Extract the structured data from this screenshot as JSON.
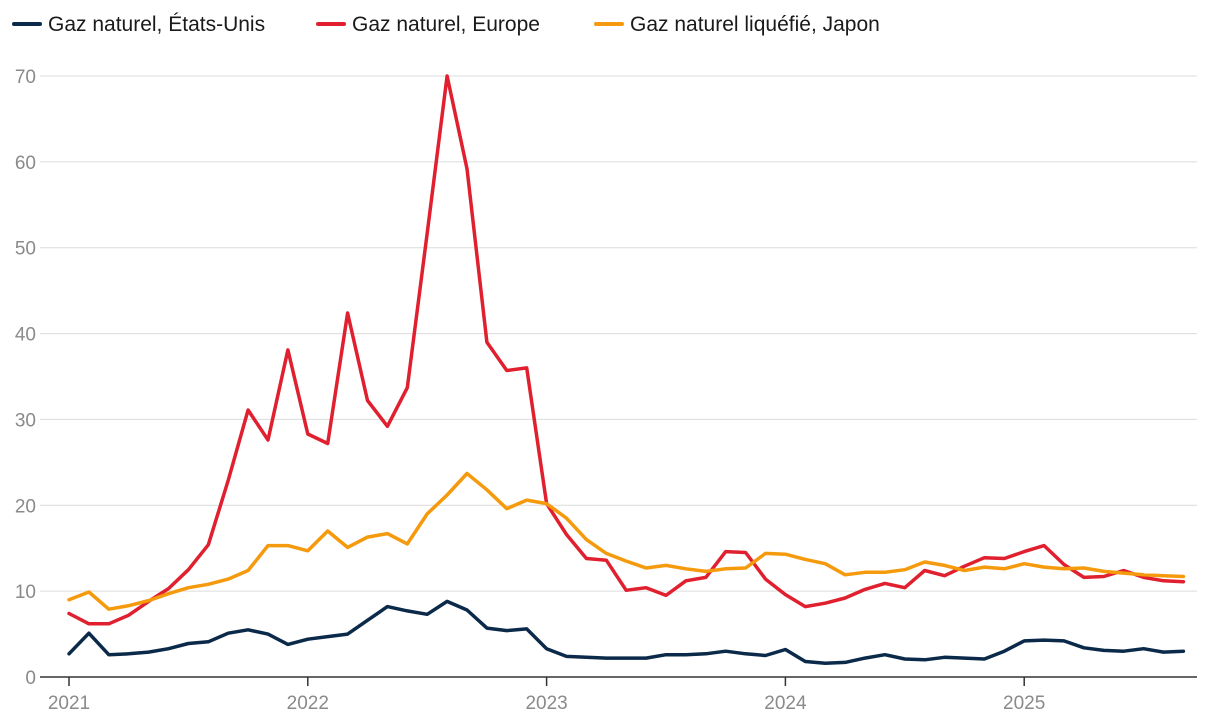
{
  "chart_data": {
    "type": "line",
    "title": "",
    "xlabel": "",
    "ylabel": "",
    "ylim": [
      0,
      70
    ],
    "yticks": [
      0,
      10,
      20,
      30,
      40,
      50,
      60,
      70
    ],
    "xtick_labels": [
      "2021",
      "2022",
      "2023",
      "2024",
      "2025"
    ],
    "grid": true,
    "legend_position": "top-left",
    "x_start": "2021-01",
    "series": [
      {
        "name": "Gaz naturel, États-Unis",
        "color": "#0b2a4a",
        "values": [
          2.7,
          5.1,
          2.6,
          2.7,
          2.9,
          3.3,
          3.9,
          4.1,
          5.1,
          5.5,
          5.0,
          3.8,
          4.4,
          4.7,
          5.0,
          6.6,
          8.2,
          7.7,
          7.3,
          8.8,
          7.8,
          5.7,
          5.4,
          5.6,
          3.3,
          2.4,
          2.3,
          2.2,
          2.2,
          2.2,
          2.6,
          2.6,
          2.7,
          3.0,
          2.7,
          2.5,
          3.2,
          1.8,
          1.6,
          1.7,
          2.2,
          2.6,
          2.1,
          2.0,
          2.3,
          2.2,
          2.1,
          3.0,
          4.2,
          4.3,
          4.2,
          3.4,
          3.1,
          3.0,
          3.3,
          2.9,
          3.0
        ]
      },
      {
        "name": "Gaz naturel, Europe",
        "color": "#e0202f",
        "values": [
          7.4,
          6.2,
          6.2,
          7.2,
          8.8,
          10.3,
          12.5,
          15.4,
          22.9,
          31.1,
          27.6,
          38.1,
          28.3,
          27.2,
          42.4,
          32.2,
          29.2,
          33.7,
          51.7,
          70.0,
          59.2,
          39.0,
          35.7,
          36.0,
          20.2,
          16.6,
          13.8,
          13.6,
          10.1,
          10.4,
          9.5,
          11.2,
          11.6,
          14.6,
          14.5,
          11.4,
          9.6,
          8.2,
          8.6,
          9.2,
          10.2,
          10.9,
          10.4,
          12.4,
          11.8,
          12.9,
          13.9,
          13.8,
          14.6,
          15.3,
          13.1,
          11.6,
          11.7,
          12.4,
          11.6,
          11.2,
          11.1
        ]
      },
      {
        "name": "Gaz naturel liquéfié, Japon",
        "color": "#f59a0c",
        "values": [
          9.0,
          9.9,
          7.9,
          8.3,
          8.9,
          9.7,
          10.4,
          10.8,
          11.4,
          12.4,
          15.3,
          15.3,
          14.7,
          17.0,
          15.1,
          16.3,
          16.7,
          15.5,
          19.0,
          21.2,
          23.7,
          21.8,
          19.6,
          20.6,
          20.2,
          18.5,
          16.0,
          14.4,
          13.5,
          12.7,
          13.0,
          12.6,
          12.3,
          12.6,
          12.7,
          14.4,
          14.3,
          13.7,
          13.2,
          11.9,
          12.2,
          12.2,
          12.5,
          13.4,
          13.0,
          12.4,
          12.8,
          12.6,
          13.2,
          12.8,
          12.6,
          12.7,
          12.3,
          12.1,
          11.9,
          11.8,
          11.7
        ]
      }
    ]
  }
}
